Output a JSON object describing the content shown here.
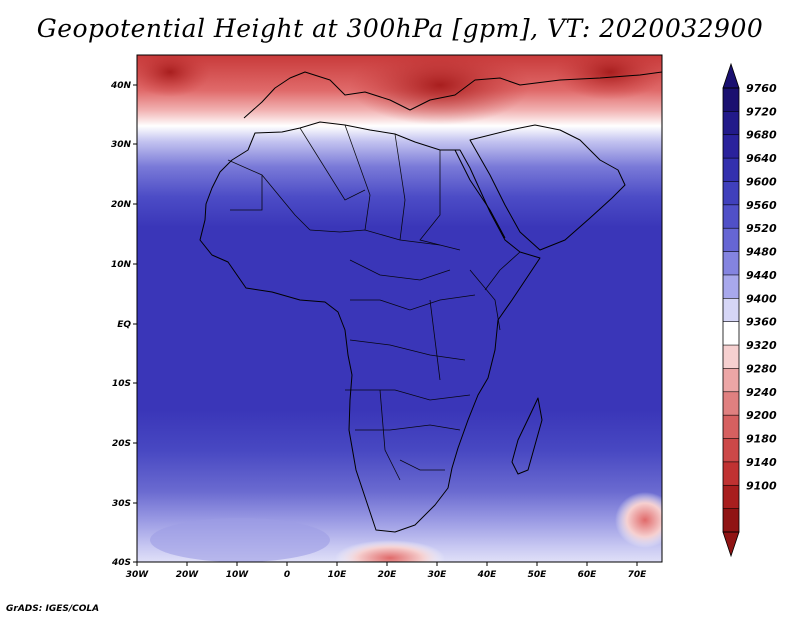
{
  "title": "Geopotential Height at 300hPa [gpm], VT: 2020032900",
  "footer": "GrADS: IGES/COLA",
  "map": {
    "lon_range": [
      -30,
      76
    ],
    "lat_range": [
      -40,
      45
    ],
    "lon_ticks": [
      "30W",
      "20W",
      "10W",
      "0",
      "10E",
      "20E",
      "30E",
      "40E",
      "50E",
      "60E",
      "70E"
    ],
    "lat_ticks": [
      "40N",
      "30N",
      "20N",
      "10N",
      "EQ",
      "10S",
      "20S",
      "30S",
      "40S"
    ]
  },
  "colorbar": {
    "levels": [
      "9760",
      "9720",
      "9680",
      "9640",
      "9600",
      "9560",
      "9520",
      "9480",
      "9440",
      "9400",
      "9360",
      "9320",
      "9280",
      "9240",
      "9200",
      "9180",
      "9140",
      "9100"
    ],
    "colors": [
      "#1a1070",
      "#221a8a",
      "#2a229c",
      "#3330ae",
      "#4040bc",
      "#5050c8",
      "#6666d4",
      "#8484e0",
      "#a8a8ec",
      "#d6d6f6",
      "#ffffff",
      "#f6d0d0",
      "#eca6a6",
      "#e08080",
      "#d66060",
      "#cc4848",
      "#c03232",
      "#a81e1e",
      "#901414"
    ]
  }
}
